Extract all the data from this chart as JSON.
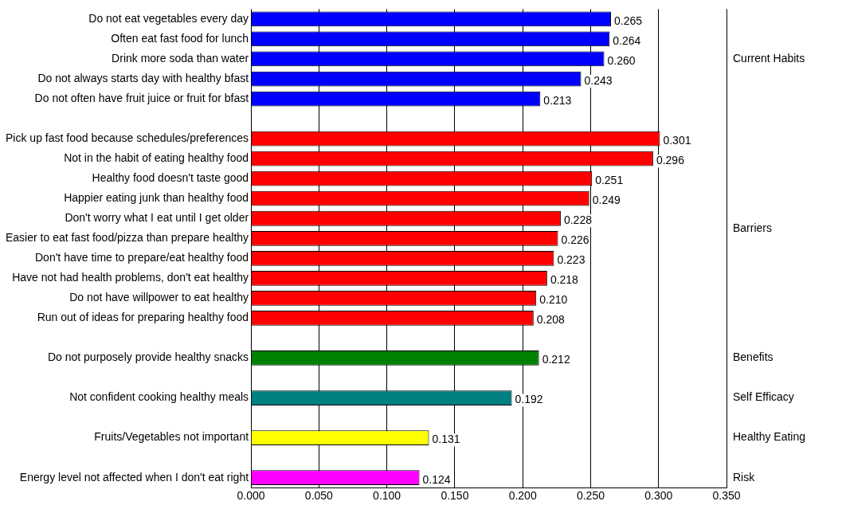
{
  "chart_data": {
    "type": "bar",
    "orientation": "horizontal",
    "grid": "x",
    "legend": false,
    "categories": [
      "Do not eat vegetables every day",
      "Often eat fast food for lunch",
      "Drink more soda than water",
      "Do not always starts day with healthy bfast",
      "Do not often have fruit juice or fruit for bfast",
      null,
      "Pick up fast food because schedules/preferences",
      "Not in the habit of eating healthy food",
      "Healthy food doesn't taste good",
      "Happier eating junk than healthy food",
      "Don't worry what I eat until I get older",
      "Easier to eat fast food/pizza than prepare healthy",
      "Don't have time to prepare/eat healthy food",
      "Have not had health problems, don't eat healthy",
      "Do not have willpower to eat healthy",
      "Run out of ideas for preparing healthy food",
      null,
      "Do not purposely provide healthy snacks",
      null,
      "Not confident cooking healthy meals",
      null,
      "Fruits/Vegetables not important",
      null,
      "Energy level not affected when I don't eat right"
    ],
    "values": [
      0.265,
      0.264,
      0.26,
      0.243,
      0.213,
      null,
      0.301,
      0.296,
      0.251,
      0.249,
      0.228,
      0.226,
      0.223,
      0.218,
      0.21,
      0.208,
      null,
      0.212,
      null,
      0.192,
      null,
      0.131,
      null,
      0.124
    ],
    "value_labels": [
      "0.265",
      "0.264",
      "0.260",
      "0.243",
      "0.213",
      null,
      "0.301",
      "0.296",
      "0.251",
      "0.249",
      "0.228",
      "0.226",
      "0.223",
      "0.218",
      "0.210",
      "0.208",
      null,
      "0.212",
      null,
      "0.192",
      null,
      "0.131",
      null,
      "0.124"
    ],
    "colors": [
      "#0000ff",
      "#0000ff",
      "#0000ff",
      "#0000ff",
      "#0000ff",
      null,
      "#ff0000",
      "#ff0000",
      "#ff0000",
      "#ff0000",
      "#ff0000",
      "#ff0000",
      "#ff0000",
      "#ff0000",
      "#ff0000",
      "#ff0000",
      null,
      "#008000",
      null,
      "#008080",
      null,
      "#ffff00",
      null,
      "#ff00ff"
    ],
    "xlim": [
      0,
      0.35
    ],
    "xticks": [
      {
        "value": 0,
        "label": "0.000"
      },
      {
        "value": 0.05,
        "label": "0.050"
      },
      {
        "value": 0.1,
        "label": "0.100"
      },
      {
        "value": 0.15,
        "label": "0.150"
      },
      {
        "value": 0.2,
        "label": "0.200"
      },
      {
        "value": 0.25,
        "label": "0.250"
      },
      {
        "value": 0.3,
        "label": "0.300"
      },
      {
        "value": 0.35,
        "label": "0.350"
      }
    ],
    "annotations": [
      "Current Habits",
      "Barriers",
      "Benefits",
      "Self Efficacy",
      "Healthy Eating",
      "Risk"
    ]
  }
}
